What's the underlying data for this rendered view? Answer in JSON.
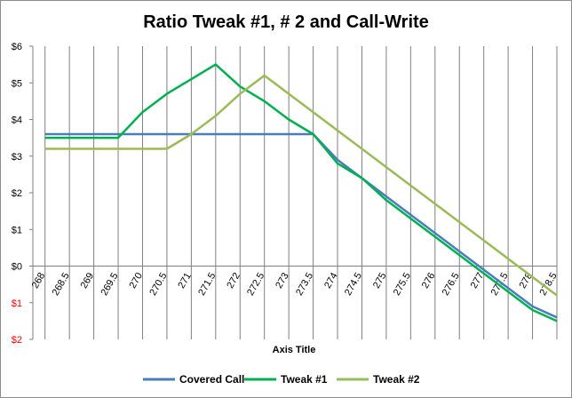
{
  "chart_data": {
    "type": "line",
    "title": "Ratio Tweak #1,  # 2 and Call-Write",
    "xlabel": "Axis Title",
    "ylabel": "",
    "x": [
      268,
      268.5,
      269,
      269.5,
      270,
      270.5,
      271,
      271.5,
      272,
      272.5,
      273,
      273.5,
      274,
      274.5,
      275,
      275.5,
      276,
      276.5,
      277,
      277.5,
      278,
      278.5
    ],
    "x_tick_labels": [
      "268",
      "268.5",
      "269",
      "269.5",
      "270",
      "270.5",
      "271",
      "271.5",
      "272",
      "272.5",
      "273",
      "273.5",
      "274",
      "274.5",
      "275",
      "275.5",
      "276",
      "276.5",
      "277",
      "277.5",
      "278",
      "278.5"
    ],
    "ylim": [
      -2,
      6
    ],
    "y_ticks": [
      {
        "value": 6,
        "label": "$6",
        "color": "#000000"
      },
      {
        "value": 5,
        "label": "$5",
        "color": "#000000"
      },
      {
        "value": 4,
        "label": "$4",
        "color": "#000000"
      },
      {
        "value": 3,
        "label": "$3",
        "color": "#000000"
      },
      {
        "value": 2,
        "label": "$2",
        "color": "#000000"
      },
      {
        "value": 1,
        "label": "$1",
        "color": "#000000"
      },
      {
        "value": 0,
        "label": "$0",
        "color": "#000000"
      },
      {
        "value": -1,
        "label": "$1",
        "color": "#ff0000"
      },
      {
        "value": -2,
        "label": "$2",
        "color": "#ff0000"
      }
    ],
    "grid": {
      "vertical": true,
      "horizontal": false
    },
    "legend_position": "bottom",
    "series": [
      {
        "name": "Covered Call",
        "color": "#4a7ebb",
        "values": [
          3.6,
          3.6,
          3.6,
          3.6,
          3.6,
          3.6,
          3.6,
          3.6,
          3.6,
          3.6,
          3.6,
          3.6,
          2.9,
          2.4,
          1.9,
          1.4,
          0.9,
          0.4,
          -0.1,
          -0.6,
          -1.1,
          -1.4
        ]
      },
      {
        "name": "Tweak #1",
        "color": "#00b050",
        "values": [
          3.5,
          3.5,
          3.5,
          3.5,
          4.2,
          4.7,
          5.1,
          5.5,
          4.9,
          4.5,
          4.0,
          3.6,
          2.8,
          2.4,
          1.8,
          1.3,
          0.8,
          0.3,
          -0.2,
          -0.7,
          -1.2,
          -1.5
        ]
      },
      {
        "name": "Tweak #2",
        "color": "#9bbb59",
        "values": [
          3.2,
          3.2,
          3.2,
          3.2,
          3.2,
          3.2,
          3.6,
          4.1,
          4.7,
          5.2,
          4.7,
          4.2,
          3.7,
          3.2,
          2.7,
          2.2,
          1.7,
          1.2,
          0.7,
          0.2,
          -0.3,
          -0.8
        ]
      }
    ]
  }
}
